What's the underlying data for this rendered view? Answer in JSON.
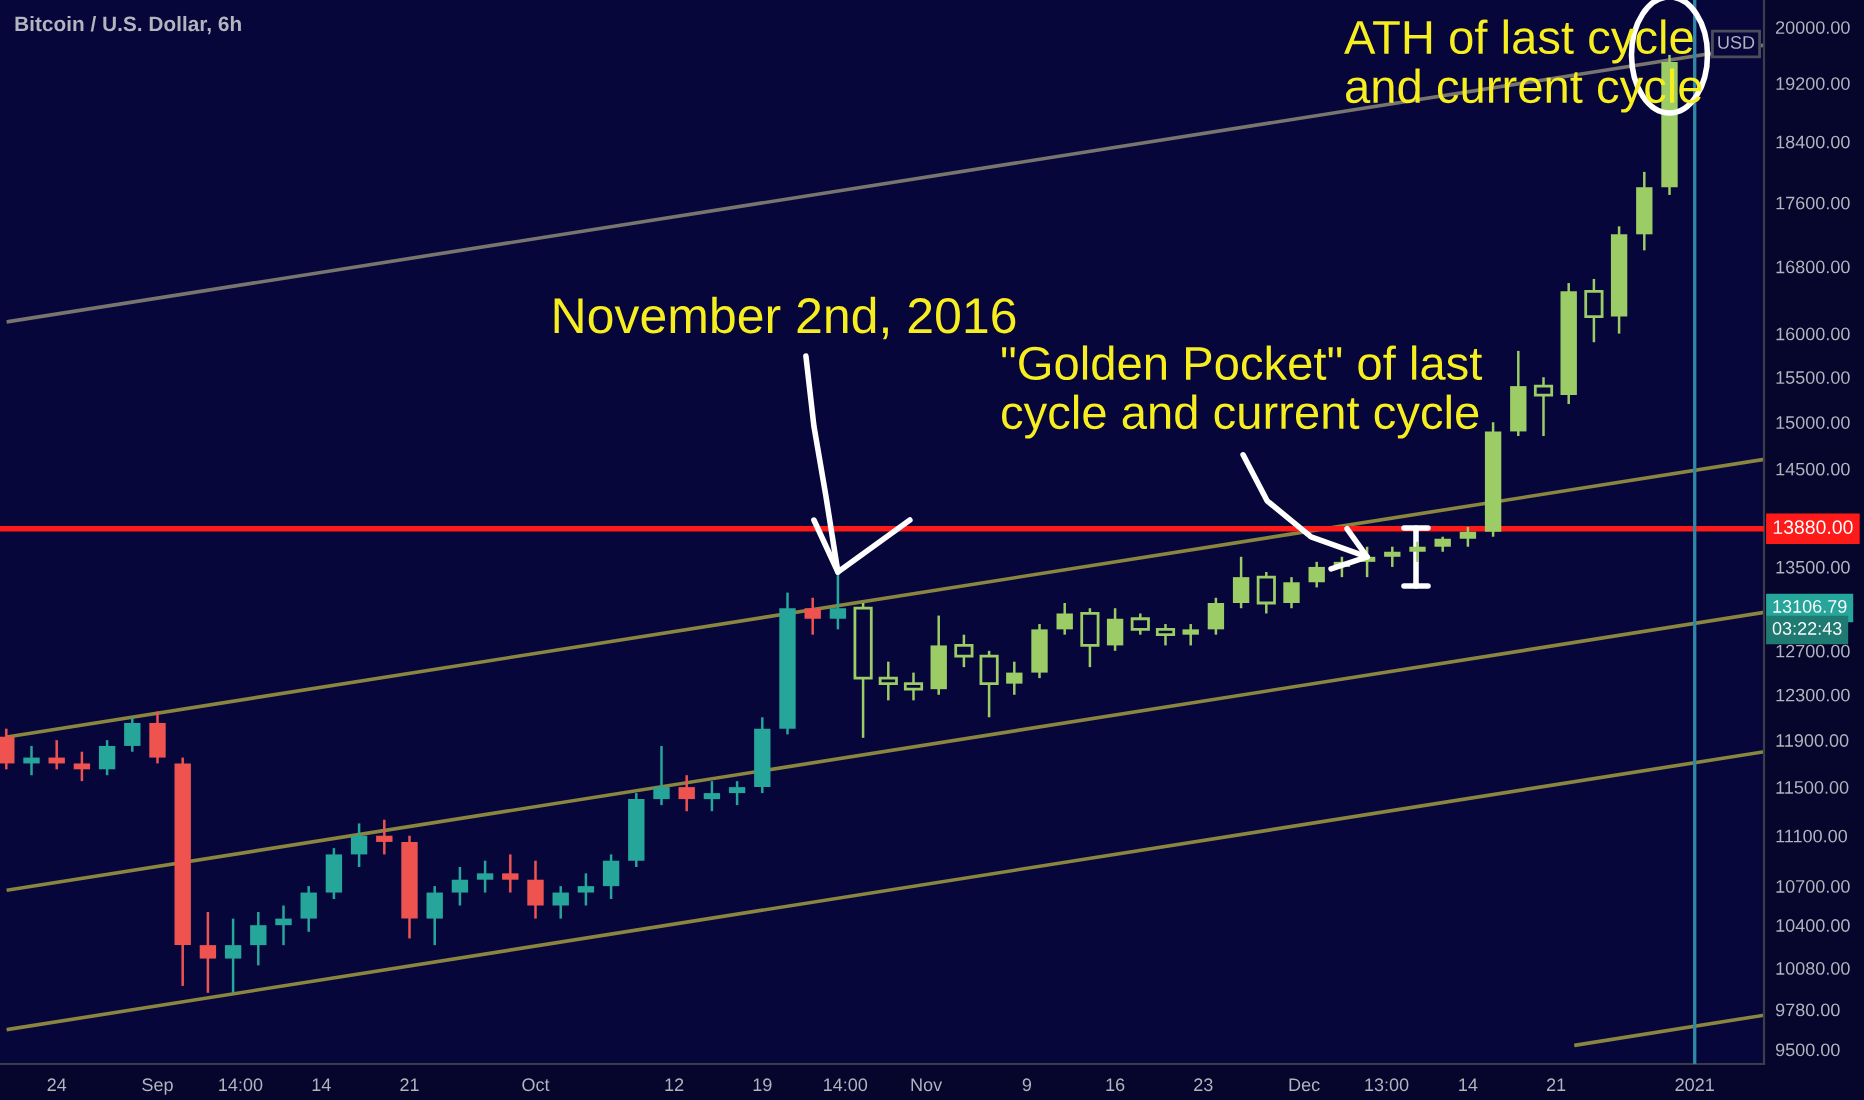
{
  "chart_data": {
    "type": "candlestick",
    "title": "Bitcoin / U.S. Dollar, 6h",
    "log": "y",
    "xlim": [
      "2020-08-19T12:00",
      "2021-01-06T12:00"
    ],
    "ylim": [
      9400,
      20400
    ],
    "xticks": [
      {
        "value": "2020-08-24",
        "label": "24"
      },
      {
        "value": "2020-09-01",
        "label": "Sep"
      },
      {
        "value": "2020-09-07T14:00",
        "label": "14:00"
      },
      {
        "value": "2020-09-14",
        "label": "14"
      },
      {
        "value": "2020-09-21",
        "label": "21"
      },
      {
        "value": "2020-10-01",
        "label": "Oct"
      },
      {
        "value": "2020-10-12",
        "label": "12"
      },
      {
        "value": "2020-10-19",
        "label": "19"
      },
      {
        "value": "2020-10-25T14:00",
        "label": "14:00"
      },
      {
        "value": "2020-11-01",
        "label": "Nov"
      },
      {
        "value": "2020-11-09",
        "label": "9"
      },
      {
        "value": "2020-11-16",
        "label": "16"
      },
      {
        "value": "2020-11-23",
        "label": "23"
      },
      {
        "value": "2020-12-01",
        "label": "Dec"
      },
      {
        "value": "2020-12-07T13:00",
        "label": "13:00"
      },
      {
        "value": "2020-12-14",
        "label": "14"
      },
      {
        "value": "2020-12-21",
        "label": "21"
      },
      {
        "value": "2021-01-01",
        "label": "2021"
      }
    ],
    "yticks": [
      {
        "value": 9500,
        "label": "9500.00"
      },
      {
        "value": 9780,
        "label": "9780.00"
      },
      {
        "value": 10080,
        "label": "10080.00"
      },
      {
        "value": 10400,
        "label": "10400.00"
      },
      {
        "value": 10700,
        "label": "10700.00"
      },
      {
        "value": 11100,
        "label": "11100.00"
      },
      {
        "value": 11500,
        "label": "11500.00"
      },
      {
        "value": 11900,
        "label": "11900.00"
      },
      {
        "value": 12300,
        "label": "12300.00"
      },
      {
        "value": 12700,
        "label": "12700.00"
      },
      {
        "value": 13500,
        "label": "13500.00"
      },
      {
        "value": 14500,
        "label": "14500.00"
      },
      {
        "value": 15000,
        "label": "15000.00"
      },
      {
        "value": 15500,
        "label": "15500.00"
      },
      {
        "value": 16000,
        "label": "16000.00"
      },
      {
        "value": 16800,
        "label": "16800.00"
      },
      {
        "value": 17600,
        "label": "17600.00"
      },
      {
        "value": 18400,
        "label": "18400.00"
      },
      {
        "value": 19200,
        "label": "19200.00"
      },
      {
        "value": 20000,
        "label": "20000.00"
      }
    ],
    "series": [
      {
        "type": "line",
        "x": [
          "2020-08-20T04:00",
          "2021-01-06T12:00"
        ],
        "values": [
          16140,
          19740
        ],
        "color": "#77756e"
      },
      {
        "type": "line",
        "x": [
          "2020-08-20T04:00",
          "2021-01-06T12:00"
        ],
        "values": [
          11930,
          14600
        ],
        "color": "#8a8640"
      },
      {
        "type": "line",
        "x": [
          "2020-08-20T04:00",
          "2021-01-06T12:00"
        ],
        "values": [
          10670,
          13060
        ],
        "color": "#8a8640"
      },
      {
        "type": "line",
        "x": [
          "2020-08-20T04:00",
          "2021-01-06T12:00"
        ],
        "values": [
          9640,
          11800
        ],
        "color": "#8a8640"
      },
      {
        "type": "line",
        "x": [
          "2020-12-22T14:00",
          "2021-01-06T12:00"
        ],
        "values": [
          9530,
          9740
        ],
        "color": "#8a8640"
      },
      {
        "x": [
          "2020-08-20",
          "2020-08-22",
          "2020-08-24",
          "2020-08-26",
          "2020-08-28",
          "2020-08-30",
          "2020-09-01",
          "2020-09-03",
          "2020-09-05",
          "2020-09-07",
          "2020-09-09",
          "2020-09-11",
          "2020-09-13",
          "2020-09-15",
          "2020-09-17",
          "2020-09-19",
          "2020-09-21",
          "2020-09-23",
          "2020-09-25",
          "2020-09-27",
          "2020-09-29",
          "2020-10-01",
          "2020-10-03",
          "2020-10-05",
          "2020-10-07",
          "2020-10-09",
          "2020-10-11",
          "2020-10-13",
          "2020-10-15",
          "2020-10-17",
          "2020-10-19",
          "2020-10-21",
          "2020-10-23",
          "2020-10-25"
        ],
        "ohlc": [
          [
            11930,
            12000,
            11650,
            11700
          ],
          [
            11700,
            11850,
            11600,
            11750
          ],
          [
            11750,
            11900,
            11650,
            11700
          ],
          [
            11700,
            11800,
            11550,
            11650
          ],
          [
            11650,
            11900,
            11600,
            11850
          ],
          [
            11850,
            12100,
            11800,
            12050
          ],
          [
            12050,
            12150,
            11700,
            11750
          ],
          [
            11700,
            11750,
            9950,
            10250
          ],
          [
            10250,
            10500,
            9900,
            10150
          ],
          [
            10150,
            10450,
            9900,
            10250
          ],
          [
            10250,
            10500,
            10100,
            10400
          ],
          [
            10400,
            10550,
            10250,
            10450
          ],
          [
            10450,
            10700,
            10350,
            10650
          ],
          [
            10650,
            11000,
            10600,
            10950
          ],
          [
            10950,
            11200,
            10850,
            11100
          ],
          [
            11100,
            11230,
            10950,
            11050
          ],
          [
            11050,
            11100,
            10300,
            10450
          ],
          [
            10450,
            10700,
            10250,
            10650
          ],
          [
            10650,
            10850,
            10550,
            10750
          ],
          [
            10750,
            10900,
            10650,
            10800
          ],
          [
            10800,
            10950,
            10650,
            10750
          ],
          [
            10750,
            10900,
            10450,
            10550
          ],
          [
            10550,
            10700,
            10450,
            10650
          ],
          [
            10650,
            10800,
            10550,
            10700
          ],
          [
            10700,
            10950,
            10600,
            10900
          ],
          [
            10900,
            11450,
            10850,
            11400
          ],
          [
            11400,
            11850,
            11350,
            11500
          ],
          [
            11500,
            11600,
            11300,
            11400
          ],
          [
            11400,
            11550,
            11300,
            11450
          ],
          [
            11450,
            11550,
            11350,
            11500
          ],
          [
            11500,
            12100,
            11450,
            12000
          ],
          [
            12000,
            13250,
            11950,
            13100
          ],
          [
            13100,
            13200,
            12850,
            13000
          ],
          [
            13000,
            13450,
            12900,
            13100
          ]
        ],
        "colors": [
          "#ef5350",
          "#26a69a",
          "#ef5350",
          "#ef5350",
          "#26a69a",
          "#26a69a",
          "#ef5350",
          "#ef5350",
          "#ef5350",
          "#26a69a",
          "#26a69a",
          "#26a69a",
          "#26a69a",
          "#26a69a",
          "#26a69a",
          "#ef5350",
          "#ef5350",
          "#26a69a",
          "#26a69a",
          "#26a69a",
          "#ef5350",
          "#ef5350",
          "#26a69a",
          "#26a69a",
          "#26a69a",
          "#26a69a",
          "#26a69a",
          "#ef5350",
          "#26a69a",
          "#26a69a",
          "#26a69a",
          "#26a69a",
          "#ef5350",
          "#26a69a"
        ]
      },
      {
        "color": "#9ccc65",
        "x": [
          "2020-10-27",
          "2020-10-29",
          "2020-10-31",
          "2020-11-02",
          "2020-11-04",
          "2020-11-06",
          "2020-11-08",
          "2020-11-10",
          "2020-11-12",
          "2020-11-14",
          "2020-11-16",
          "2020-11-18",
          "2020-11-20",
          "2020-11-22",
          "2020-11-24",
          "2020-11-26",
          "2020-11-28",
          "2020-11-30",
          "2020-12-02",
          "2020-12-04",
          "2020-12-06",
          "2020-12-08",
          "2020-12-10",
          "2020-12-12",
          "2020-12-14",
          "2020-12-16",
          "2020-12-18",
          "2020-12-20",
          "2020-12-22",
          "2020-12-24",
          "2020-12-26",
          "2020-12-28",
          "2020-12-30"
        ],
        "ohlc": [
          [
            13100,
            13150,
            11920,
            12450
          ],
          [
            12450,
            12600,
            12250,
            12400
          ],
          [
            12400,
            12500,
            12250,
            12350
          ],
          [
            12350,
            13030,
            12300,
            12750
          ],
          [
            12750,
            12850,
            12550,
            12650
          ],
          [
            12650,
            12700,
            12100,
            12400
          ],
          [
            12400,
            12600,
            12300,
            12500
          ],
          [
            12500,
            12950,
            12450,
            12900
          ],
          [
            12900,
            13150,
            12850,
            13050
          ],
          [
            13050,
            13100,
            12550,
            12750
          ],
          [
            12750,
            13100,
            12700,
            13000
          ],
          [
            13000,
            13050,
            12850,
            12900
          ],
          [
            12900,
            12950,
            12750,
            12850
          ],
          [
            12850,
            12950,
            12750,
            12900
          ],
          [
            12900,
            13200,
            12850,
            13150
          ],
          [
            13150,
            13600,
            13100,
            13400
          ],
          [
            13400,
            13450,
            13050,
            13150
          ],
          [
            13150,
            13400,
            13100,
            13350
          ],
          [
            13350,
            13550,
            13300,
            13500
          ],
          [
            13500,
            13600,
            13400,
            13550
          ],
          [
            13550,
            13700,
            13400,
            13600
          ],
          [
            13600,
            13700,
            13500,
            13650
          ],
          [
            13650,
            13750,
            13550,
            13700
          ],
          [
            13700,
            13800,
            13650,
            13780
          ],
          [
            13780,
            13900,
            13700,
            13850
          ],
          [
            13850,
            15000,
            13800,
            14900
          ],
          [
            14900,
            15800,
            14850,
            15400
          ],
          [
            15400,
            15500,
            14850,
            15300
          ],
          [
            15300,
            16600,
            15200,
            16500
          ],
          [
            16500,
            16650,
            15900,
            16200
          ],
          [
            16200,
            17300,
            16000,
            17200
          ],
          [
            17200,
            18000,
            17000,
            17800
          ],
          [
            17800,
            19600,
            17700,
            19500
          ]
        ]
      }
    ],
    "ref_lines": [
      {
        "axis": "y",
        "value": 13880,
        "label": "13880.00",
        "color": "#ff1a1a"
      },
      {
        "axis": "x",
        "value": "2021-01-01",
        "color": "#2f86a6"
      }
    ],
    "annotations": [
      {
        "text": "November 2nd, 2016",
        "x": "2020-10-25",
        "y": 13450
      },
      {
        "text": "\"Golden Pocket\" of last\ncycle and current cycle",
        "x": "2020-12-06",
        "y": 13600
      },
      {
        "text": "ATH of last cycle\nand current cycle",
        "x": "2020-12-30",
        "y": 19600
      },
      "USD",
      "13106.79",
      "03:22:43"
    ]
  }
}
